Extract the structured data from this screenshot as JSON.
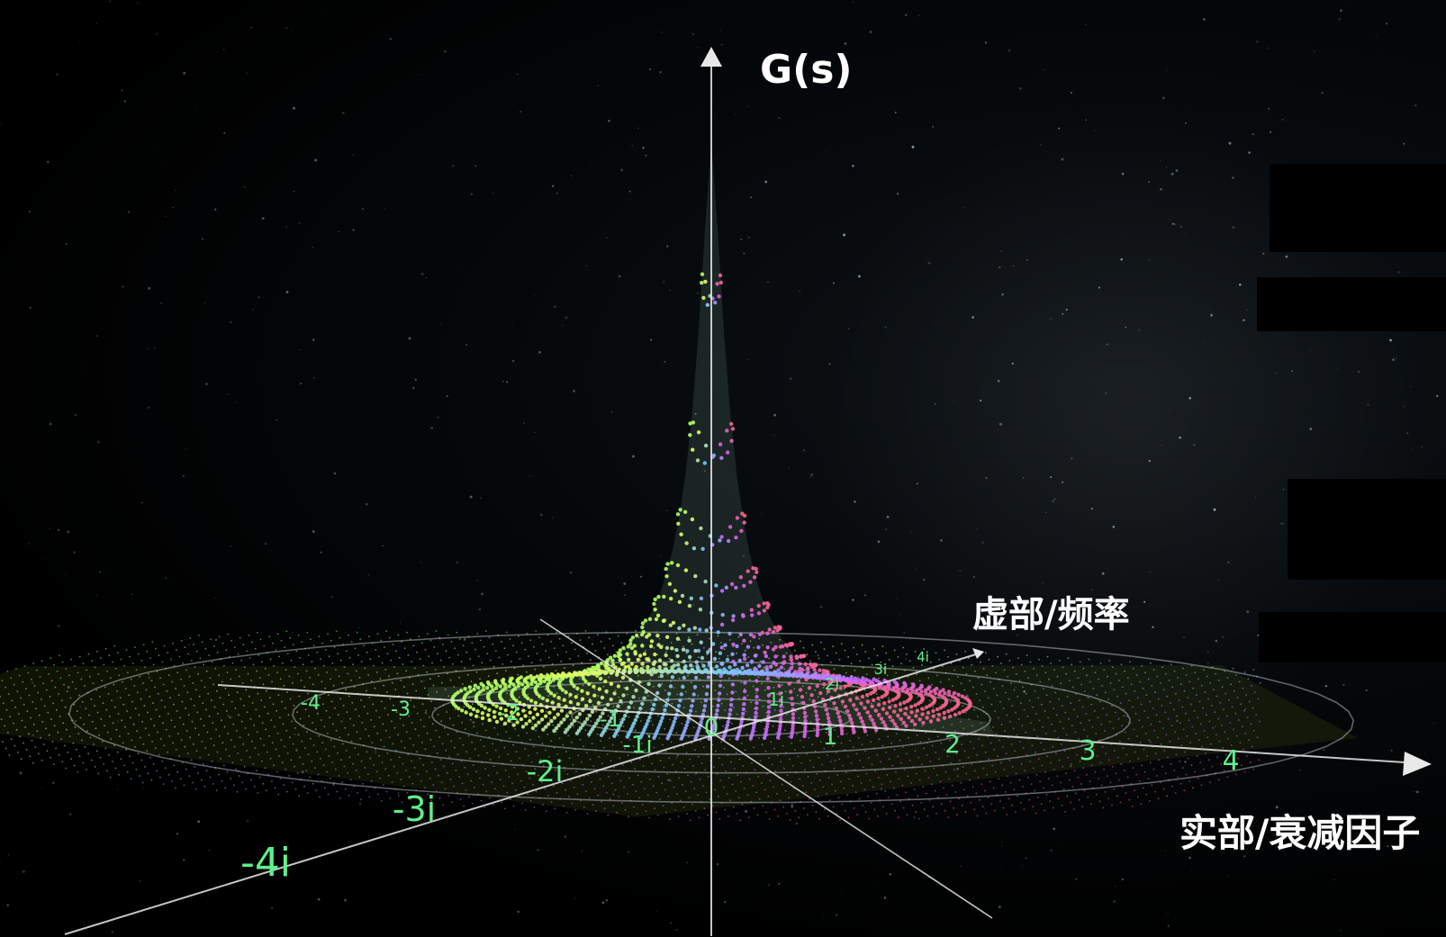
{
  "diagram": {
    "vertical_axis_label": "G(s)",
    "imaginary_axis_label": "虚部/频率",
    "real_axis_label": "实部/衰减因子",
    "real_axis_ticks": [
      "-4",
      "-3",
      "-2",
      "-1",
      "0",
      "1",
      "2",
      "3",
      "4"
    ],
    "imaginary_axis_ticks": [
      "-4i",
      "-3i",
      "-2i",
      "-1i",
      "1i",
      "2i",
      "3i",
      "4i"
    ],
    "tick_color": "#5ef08a",
    "axis_color": "#e8e8e8",
    "background_color": "#000000",
    "surface_gradient": [
      "#64ff6e",
      "#e8ff64",
      "#78c8ff",
      "#d264ff",
      "#ff6478"
    ]
  }
}
